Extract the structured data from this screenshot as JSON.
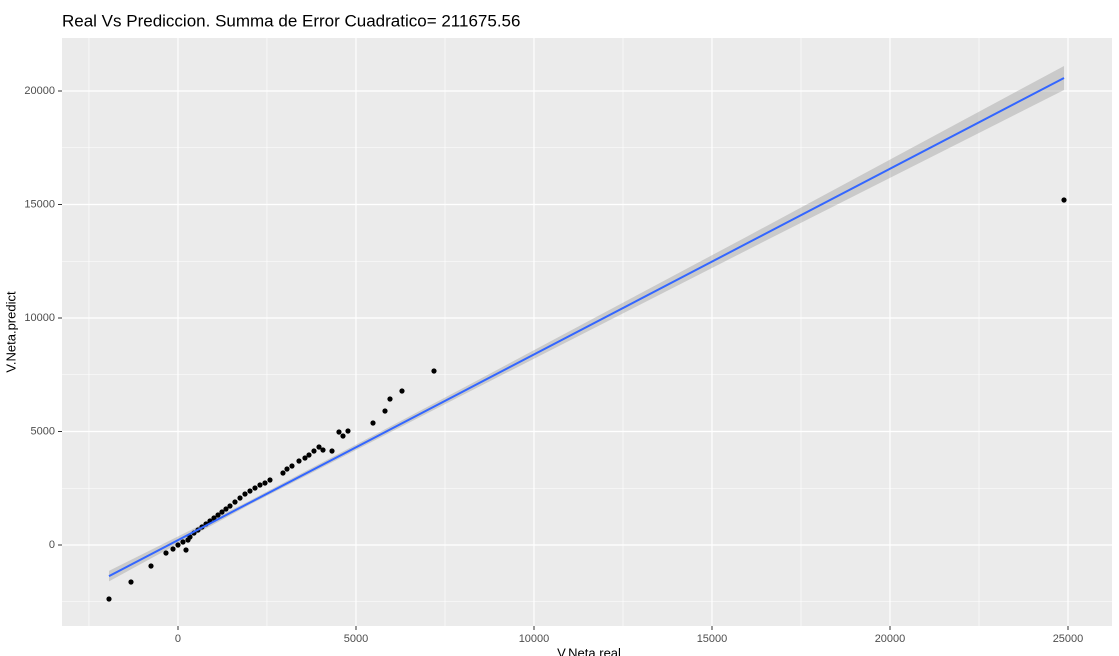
{
  "chart_data": {
    "type": "scatter",
    "title": "Real Vs Prediccion. Summa de Error Cuadratico= 211675.56",
    "x_label": "V.Neta.real",
    "y_label": "V.Neta.predict",
    "xlim": [
      -3258,
      26236
    ],
    "ylim": [
      -3568,
      22335
    ],
    "xticks": [
      0,
      5000,
      10000,
      15000,
      20000,
      25000
    ],
    "yticks": [
      0,
      5000,
      10000,
      15000,
      20000
    ],
    "xminor": [
      -2500,
      2500,
      7500,
      12500,
      17500,
      22500
    ],
    "yminor": [
      -2500,
      2500,
      7500,
      12500,
      17500
    ],
    "grid": true,
    "color": "#000000",
    "x": [
      -1938,
      -1320,
      -758,
      -337,
      -140,
      0,
      140,
      225,
      281,
      337,
      449,
      562,
      674,
      787,
      899,
      1011,
      1124,
      1236,
      1348,
      1461,
      1601,
      1742,
      1882,
      2022,
      2163,
      2303,
      2444,
      2584,
      2949,
      3062,
      3202,
      3399,
      3567,
      3680,
      3820,
      3961,
      4073,
      4326,
      4522,
      4635,
      4775,
      5478,
      5815,
      5955,
      6292,
      7191,
      24888
    ],
    "values": [
      -2379,
      -1630,
      -925,
      -352,
      -176,
      0,
      132,
      -220,
      220,
      352,
      529,
      661,
      793,
      925,
      1057,
      1189,
      1322,
      1454,
      1586,
      1718,
      1894,
      2070,
      2247,
      2379,
      2511,
      2643,
      2731,
      2863,
      3172,
      3348,
      3480,
      3700,
      3833,
      3965,
      4141,
      4317,
      4185,
      4141,
      4978,
      4802,
      5022,
      5374,
      5903,
      6432,
      6784,
      7665,
      15198
    ],
    "fit": {
      "color": "#3366FF",
      "band_color": "#999999",
      "x": [
        -1938,
        2000,
        8000,
        16000,
        24888
      ],
      "values": [
        -1370,
        1851,
        6759,
        13303,
        20573
      ],
      "lower": [
        -1600,
        1761,
        6609,
        13003,
        20043
      ],
      "upper": [
        -1140,
        1941,
        6909,
        13603,
        21103
      ]
    }
  }
}
